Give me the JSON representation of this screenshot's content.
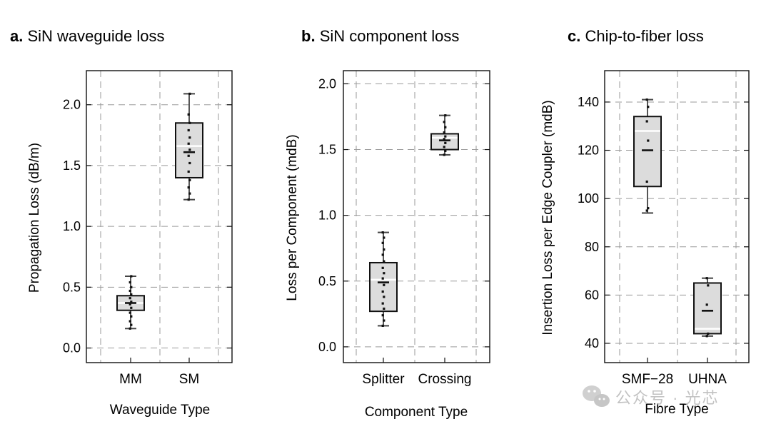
{
  "chart_data": [
    {
      "type": "box",
      "panel": "a.",
      "title": "SiN waveguide loss",
      "xlabel": "Waveguide Type",
      "ylabel": "Propagation Loss (dB/m)",
      "ylim": [
        -0.12,
        2.28
      ],
      "yticks": [
        0.0,
        0.5,
        1.0,
        1.5,
        2.0
      ],
      "ytick_labels": [
        "0.0",
        "0.5",
        "1.0",
        "1.5",
        "2.0"
      ],
      "grid": true,
      "categories": [
        "MM",
        "SM"
      ],
      "boxes": [
        {
          "name": "MM",
          "whisker_low": 0.16,
          "q1": 0.31,
          "median": 0.37,
          "mean": 0.37,
          "q3": 0.43,
          "whisker_high": 0.59,
          "points": [
            0.16,
            0.19,
            0.22,
            0.26,
            0.29,
            0.33,
            0.36,
            0.38,
            0.41,
            0.44,
            0.47,
            0.5,
            0.54,
            0.59
          ]
        },
        {
          "name": "SM",
          "whisker_low": 1.22,
          "q1": 1.4,
          "median": 1.66,
          "mean": 1.61,
          "q3": 1.85,
          "whisker_high": 2.09,
          "points": [
            1.22,
            1.27,
            1.32,
            1.38,
            1.45,
            1.52,
            1.58,
            1.63,
            1.68,
            1.73,
            1.79,
            1.85,
            1.92,
            2.09
          ]
        }
      ]
    },
    {
      "type": "box",
      "panel": "b.",
      "title": "SiN component loss",
      "xlabel": "Component Type",
      "ylabel": "Loss per Component (mdB)",
      "ylim": [
        -0.12,
        2.1
      ],
      "yticks": [
        0.0,
        0.5,
        1.0,
        1.5,
        2.0
      ],
      "ytick_labels": [
        "0.0",
        "0.5",
        "1.0",
        "1.5",
        "2.0"
      ],
      "grid": true,
      "categories": [
        "Splitter",
        "Crossing"
      ],
      "boxes": [
        {
          "name": "Splitter",
          "whisker_low": 0.16,
          "q1": 0.27,
          "median": 0.51,
          "mean": 0.49,
          "q3": 0.64,
          "whisker_high": 0.87,
          "points": [
            0.16,
            0.2,
            0.24,
            0.29,
            0.33,
            0.38,
            0.42,
            0.47,
            0.52,
            0.56,
            0.6,
            0.65,
            0.7,
            0.74,
            0.79,
            0.83,
            0.87
          ]
        },
        {
          "name": "Crossing",
          "whisker_low": 1.46,
          "q1": 1.5,
          "median": 1.59,
          "mean": 1.57,
          "q3": 1.62,
          "whisker_high": 1.76,
          "points": [
            1.46,
            1.49,
            1.52,
            1.55,
            1.58,
            1.6,
            1.63,
            1.67,
            1.71,
            1.76
          ]
        }
      ]
    },
    {
      "type": "box",
      "panel": "c.",
      "title": "Chip-to-fiber loss",
      "xlabel": "Fibre Type",
      "ylabel": "Insertion Loss per Edge Coupler (mdB)",
      "ylim": [
        32,
        153
      ],
      "yticks": [
        40,
        60,
        80,
        100,
        120,
        140
      ],
      "ytick_labels": [
        "40",
        "60",
        "80",
        "100",
        "120",
        "140"
      ],
      "grid": true,
      "categories": [
        "SMF−28",
        "UHNA"
      ],
      "boxes": [
        {
          "name": "SMF−28",
          "whisker_low": 94,
          "q1": 105,
          "median": 128,
          "mean": 120,
          "q3": 134,
          "whisker_high": 141,
          "points": [
            95,
            96,
            107,
            124,
            132,
            138,
            141
          ]
        },
        {
          "name": "UHNA",
          "whisker_low": 43,
          "q1": 44,
          "median": 46,
          "mean": 53.5,
          "q3": 65,
          "whisker_high": 67,
          "points": [
            43,
            44,
            56,
            64,
            67
          ]
        }
      ]
    }
  ],
  "watermark": {
    "text": "公众号 · 光芯",
    "icon": "wechat-icon"
  },
  "colors": {
    "box_fill": "#dcdcdc",
    "box_edge": "#111111",
    "median_line": "#ffffff",
    "grid": "#9a9a9a",
    "point": "#111111"
  }
}
